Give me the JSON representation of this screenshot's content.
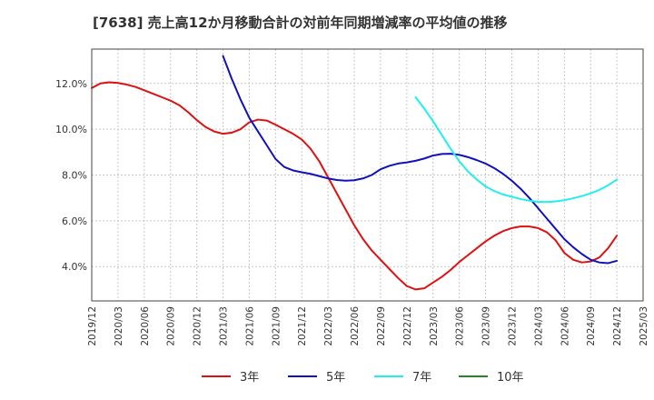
{
  "chart_data": {
    "type": "line",
    "title": "[7638]  売上高12か月移動合計の対前年同期増減率の平均値の推移",
    "xlabel": "",
    "ylabel": "",
    "x_ticks": [
      "2019/12",
      "2020/03",
      "2020/06",
      "2020/09",
      "2020/12",
      "2021/03",
      "2021/06",
      "2021/09",
      "2021/12",
      "2022/03",
      "2022/06",
      "2022/09",
      "2022/12",
      "2023/03",
      "2023/06",
      "2023/09",
      "2023/12",
      "2024/03",
      "2024/06",
      "2024/09",
      "2024/12",
      "2025/03"
    ],
    "y_ticks": [
      "4.0%",
      "6.0%",
      "8.0%",
      "10.0%",
      "12.0%"
    ],
    "ylim": [
      2.5,
      13.5
    ],
    "xlim": [
      "2019/12",
      "2025/03"
    ],
    "grid": true,
    "legend_position": "bottom",
    "series": [
      {
        "name": "3年",
        "color": "#dd1111",
        "points": [
          [
            "2019/12",
            11.8
          ],
          [
            "2020/01",
            12.0
          ],
          [
            "2020/02",
            12.05
          ],
          [
            "2020/03",
            12.02
          ],
          [
            "2020/04",
            11.95
          ],
          [
            "2020/05",
            11.85
          ],
          [
            "2020/06",
            11.7
          ],
          [
            "2020/07",
            11.55
          ],
          [
            "2020/08",
            11.4
          ],
          [
            "2020/09",
            11.25
          ],
          [
            "2020/10",
            11.05
          ],
          [
            "2020/11",
            10.75
          ],
          [
            "2020/12",
            10.4
          ],
          [
            "2021/01",
            10.1
          ],
          [
            "2021/02",
            9.9
          ],
          [
            "2021/03",
            9.8
          ],
          [
            "2021/04",
            9.85
          ],
          [
            "2021/05",
            10.0
          ],
          [
            "2021/06",
            10.3
          ],
          [
            "2021/07",
            10.42
          ],
          [
            "2021/08",
            10.38
          ],
          [
            "2021/09",
            10.2
          ],
          [
            "2021/10",
            10.0
          ],
          [
            "2021/11",
            9.8
          ],
          [
            "2021/12",
            9.55
          ],
          [
            "2022/01",
            9.15
          ],
          [
            "2022/02",
            8.6
          ],
          [
            "2022/03",
            7.9
          ],
          [
            "2022/04",
            7.2
          ],
          [
            "2022/05",
            6.5
          ],
          [
            "2022/06",
            5.8
          ],
          [
            "2022/07",
            5.2
          ],
          [
            "2022/08",
            4.7
          ],
          [
            "2022/09",
            4.3
          ],
          [
            "2022/10",
            3.9
          ],
          [
            "2022/11",
            3.5
          ],
          [
            "2022/12",
            3.15
          ],
          [
            "2023/01",
            3.0
          ],
          [
            "2023/02",
            3.05
          ],
          [
            "2023/03",
            3.3
          ],
          [
            "2023/04",
            3.55
          ],
          [
            "2023/05",
            3.85
          ],
          [
            "2023/06",
            4.2
          ],
          [
            "2023/07",
            4.5
          ],
          [
            "2023/08",
            4.8
          ],
          [
            "2023/09",
            5.1
          ],
          [
            "2023/10",
            5.35
          ],
          [
            "2023/11",
            5.55
          ],
          [
            "2023/12",
            5.68
          ],
          [
            "2024/01",
            5.75
          ],
          [
            "2024/02",
            5.75
          ],
          [
            "2024/03",
            5.68
          ],
          [
            "2024/04",
            5.5
          ],
          [
            "2024/05",
            5.15
          ],
          [
            "2024/06",
            4.6
          ],
          [
            "2024/07",
            4.3
          ],
          [
            "2024/08",
            4.18
          ],
          [
            "2024/09",
            4.22
          ],
          [
            "2024/10",
            4.4
          ],
          [
            "2024/11",
            4.8
          ],
          [
            "2024/12",
            5.35
          ]
        ]
      },
      {
        "name": "5年",
        "color": "#1111bb",
        "points": [
          [
            "2021/03",
            13.2
          ],
          [
            "2021/04",
            12.2
          ],
          [
            "2021/05",
            11.3
          ],
          [
            "2021/06",
            10.5
          ],
          [
            "2021/07",
            9.9
          ],
          [
            "2021/08",
            9.3
          ],
          [
            "2021/09",
            8.7
          ],
          [
            "2021/10",
            8.35
          ],
          [
            "2021/11",
            8.2
          ],
          [
            "2021/12",
            8.12
          ],
          [
            "2022/01",
            8.05
          ],
          [
            "2022/02",
            7.95
          ],
          [
            "2022/03",
            7.85
          ],
          [
            "2022/04",
            7.78
          ],
          [
            "2022/05",
            7.75
          ],
          [
            "2022/06",
            7.77
          ],
          [
            "2022/07",
            7.85
          ],
          [
            "2022/08",
            8.0
          ],
          [
            "2022/09",
            8.25
          ],
          [
            "2022/10",
            8.4
          ],
          [
            "2022/11",
            8.5
          ],
          [
            "2022/12",
            8.55
          ],
          [
            "2023/01",
            8.62
          ],
          [
            "2023/02",
            8.72
          ],
          [
            "2023/03",
            8.85
          ],
          [
            "2023/04",
            8.92
          ],
          [
            "2023/05",
            8.93
          ],
          [
            "2023/06",
            8.88
          ],
          [
            "2023/07",
            8.78
          ],
          [
            "2023/08",
            8.65
          ],
          [
            "2023/09",
            8.5
          ],
          [
            "2023/10",
            8.3
          ],
          [
            "2023/11",
            8.05
          ],
          [
            "2023/12",
            7.75
          ],
          [
            "2024/01",
            7.4
          ],
          [
            "2024/02",
            7.0
          ],
          [
            "2024/03",
            6.55
          ],
          [
            "2024/04",
            6.1
          ],
          [
            "2024/05",
            5.65
          ],
          [
            "2024/06",
            5.2
          ],
          [
            "2024/07",
            4.85
          ],
          [
            "2024/08",
            4.55
          ],
          [
            "2024/09",
            4.3
          ],
          [
            "2024/10",
            4.18
          ],
          [
            "2024/11",
            4.15
          ],
          [
            "2024/12",
            4.25
          ]
        ]
      },
      {
        "name": "7年",
        "color": "#22eeee",
        "points": [
          [
            "2023/01",
            11.4
          ],
          [
            "2023/02",
            10.9
          ],
          [
            "2023/03",
            10.35
          ],
          [
            "2023/04",
            9.75
          ],
          [
            "2023/05",
            9.15
          ],
          [
            "2023/06",
            8.6
          ],
          [
            "2023/07",
            8.15
          ],
          [
            "2023/08",
            7.8
          ],
          [
            "2023/09",
            7.5
          ],
          [
            "2023/10",
            7.3
          ],
          [
            "2023/11",
            7.15
          ],
          [
            "2023/12",
            7.05
          ],
          [
            "2024/01",
            6.95
          ],
          [
            "2024/02",
            6.88
          ],
          [
            "2024/03",
            6.83
          ],
          [
            "2024/04",
            6.82
          ],
          [
            "2024/05",
            6.85
          ],
          [
            "2024/06",
            6.9
          ],
          [
            "2024/07",
            6.98
          ],
          [
            "2024/08",
            7.08
          ],
          [
            "2024/09",
            7.2
          ],
          [
            "2024/10",
            7.35
          ],
          [
            "2024/11",
            7.55
          ],
          [
            "2024/12",
            7.8
          ]
        ]
      },
      {
        "name": "10年",
        "color": "#228822",
        "points": []
      }
    ]
  }
}
